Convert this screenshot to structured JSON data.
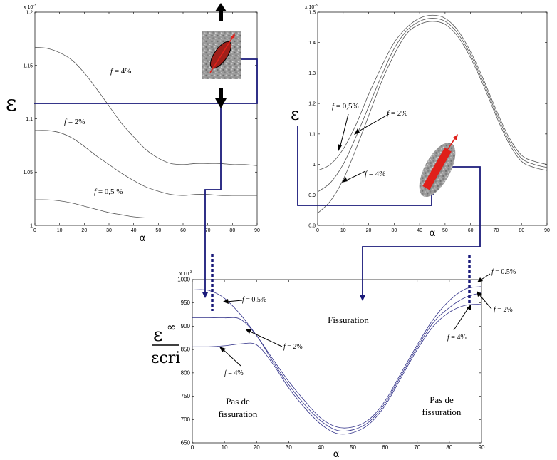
{
  "chart_data": [
    {
      "type": "line",
      "panel": "top-left",
      "xlabel": "α",
      "exponent_label": "x 10",
      "exponent_sup": "-3",
      "xlim": [
        0,
        90
      ],
      "ylim": [
        1,
        1.2
      ],
      "x_ticks": [
        0,
        10,
        20,
        30,
        40,
        50,
        60,
        70,
        80,
        90
      ],
      "y_ticks": [
        1,
        1.05,
        1.1,
        1.15,
        1.2
      ],
      "y_tick_labels": [
        "1",
        "1.05",
        "1.1",
        "1.15",
        "1.2"
      ],
      "x": [
        0,
        5,
        10,
        15,
        20,
        25,
        30,
        35,
        40,
        45,
        50,
        55,
        60,
        65,
        70,
        75,
        80,
        85,
        90
      ],
      "series": [
        {
          "name": "f = 4%",
          "values": [
            1.167,
            1.166,
            1.162,
            1.155,
            1.143,
            1.128,
            1.112,
            1.096,
            1.083,
            1.071,
            1.063,
            1.058,
            1.057,
            1.058,
            1.058,
            1.058,
            1.057,
            1.057,
            1.056
          ]
        },
        {
          "name": "f = 2%",
          "values": [
            1.089,
            1.089,
            1.087,
            1.082,
            1.074,
            1.065,
            1.057,
            1.049,
            1.042,
            1.036,
            1.032,
            1.029,
            1.028,
            1.029,
            1.029,
            1.028,
            1.028,
            1.028,
            1.028
          ]
        },
        {
          "name": "f = 0,5 %",
          "values": [
            1.024,
            1.024,
            1.023,
            1.021,
            1.018,
            1.015,
            1.012,
            1.01,
            1.008,
            1.007,
            1.007,
            1.007,
            1.007,
            1.007,
            1.007,
            1.007,
            1.007,
            1.007,
            1.007
          ]
        }
      ],
      "labels": {
        "f4": "= 4%",
        "f2": "= 2%",
        "f05": "= 0,5 %"
      },
      "y_marker": "ε"
    },
    {
      "type": "line",
      "panel": "top-right",
      "xlabel": "α",
      "exponent_label": "x 10",
      "exponent_sup": "-3",
      "xlim": [
        0,
        90
      ],
      "ylim": [
        0.8,
        1.5
      ],
      "x_ticks": [
        0,
        10,
        20,
        30,
        40,
        50,
        60,
        70,
        80,
        90
      ],
      "y_ticks": [
        0.8,
        0.9,
        1,
        1.1,
        1.2,
        1.3,
        1.4,
        1.5
      ],
      "y_tick_labels": [
        "0.8",
        "0.9",
        "1",
        "1.1",
        "1.2",
        "1.3",
        "1.4",
        "1.5"
      ],
      "x": [
        0,
        5,
        10,
        15,
        20,
        25,
        30,
        35,
        40,
        45,
        50,
        55,
        60,
        65,
        70,
        75,
        80,
        85,
        90
      ],
      "series": [
        {
          "name": "f = 0,5%",
          "values": [
            0.98,
            1.0,
            1.05,
            1.13,
            1.23,
            1.32,
            1.4,
            1.45,
            1.48,
            1.49,
            1.48,
            1.44,
            1.37,
            1.28,
            1.18,
            1.09,
            1.03,
            1.01,
            1.0
          ]
        },
        {
          "name": "f = 2%",
          "values": [
            0.91,
            0.94,
            1.0,
            1.09,
            1.19,
            1.29,
            1.38,
            1.44,
            1.47,
            1.48,
            1.47,
            1.43,
            1.36,
            1.27,
            1.17,
            1.08,
            1.02,
            1.0,
            0.99
          ]
        },
        {
          "name": "f = 4%",
          "values": [
            0.84,
            0.88,
            0.95,
            1.05,
            1.16,
            1.27,
            1.36,
            1.43,
            1.46,
            1.47,
            1.46,
            1.42,
            1.35,
            1.26,
            1.16,
            1.07,
            1.01,
            0.99,
            0.98
          ]
        }
      ],
      "labels": {
        "f05": "= 0,5%",
        "f2": "= 2%",
        "f4": "= 4%"
      },
      "y_marker": "ε"
    },
    {
      "type": "line",
      "panel": "bottom",
      "xlabel": "α",
      "exponent_label": "x 10",
      "exponent_sup": "-3",
      "xlim": [
        0,
        90
      ],
      "ylim": [
        650,
        1000
      ],
      "x_ticks": [
        0,
        10,
        20,
        30,
        40,
        50,
        60,
        70,
        80,
        90
      ],
      "y_ticks": [
        650,
        700,
        750,
        800,
        850,
        900,
        950,
        1000
      ],
      "y_tick_labels": [
        "650",
        "700",
        "750",
        "800",
        "850",
        "900",
        "950",
        "1000"
      ],
      "x": [
        0,
        5,
        10,
        15,
        20,
        25,
        30,
        35,
        40,
        45,
        50,
        55,
        60,
        65,
        70,
        75,
        80,
        85,
        90
      ],
      "series": [
        {
          "name": "f = 0.5%",
          "values": [
            978,
            977,
            960,
            925,
            880,
            830,
            782,
            740,
            703,
            684,
            684,
            700,
            740,
            800,
            860,
            915,
            955,
            980,
            985
          ]
        },
        {
          "name": "f = 2%",
          "values": [
            918,
            918,
            918,
            915,
            880,
            825,
            775,
            732,
            697,
            677,
            678,
            695,
            735,
            795,
            855,
            908,
            940,
            962,
            972
          ]
        },
        {
          "name": "f = 4%",
          "values": [
            856,
            856,
            858,
            862,
            860,
            820,
            768,
            725,
            690,
            670,
            672,
            690,
            730,
            790,
            850,
            900,
            930,
            945,
            947
          ]
        }
      ],
      "labels": {
        "left_f05": "= 0.5%",
        "left_f2": "= 2%",
        "left_f4": "= 4%",
        "right_f05": "= 0.5%",
        "right_f2": "= 2%",
        "right_f4": "= 4%",
        "fissuration": "Fissuration",
        "no_fiss_l1": "Pas de",
        "no_fiss_l2": "fissuration",
        "no_fiss_r1": "Pas de",
        "no_fiss_r2": "fissuration"
      },
      "y_marker_top": "ε",
      "y_marker_sup": "∞",
      "y_marker_bottom": "εcri"
    }
  ],
  "f_symbol": "f",
  "colors": {
    "curve": "#555555",
    "blue_path": "#1a1a7a",
    "arrow_red": "#e0201a",
    "dark_arrow": "#000000"
  }
}
